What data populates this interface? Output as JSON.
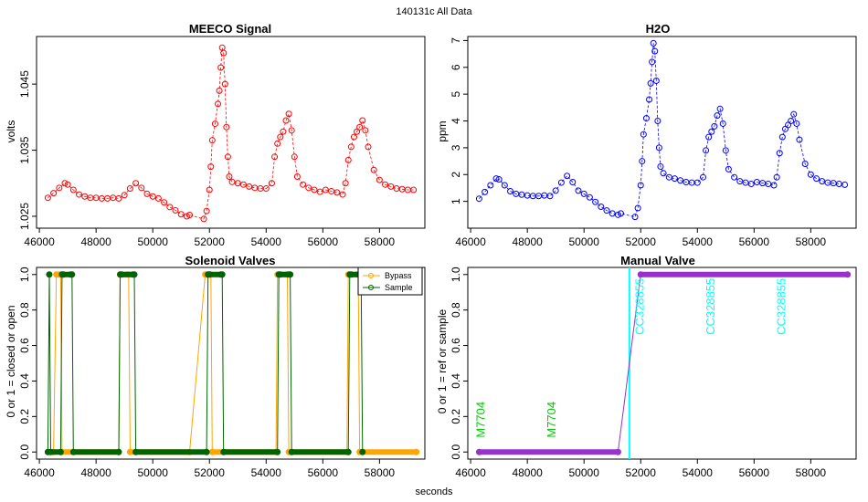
{
  "figure": {
    "title": "140131c   All Data",
    "footer_label": "seconds"
  },
  "chart_data": [
    {
      "id": "meeco",
      "type": "scatter",
      "title": "MEECO Signal",
      "xlabel": "",
      "ylabel": "volts",
      "xlim": [
        45900,
        59600
      ],
      "ylim": [
        1.0232,
        1.0522
      ],
      "xticks": [
        46000,
        48000,
        50000,
        52000,
        54000,
        56000,
        58000
      ],
      "yticks": [
        1.025,
        1.035,
        1.045
      ],
      "ytick_labels": [
        "1.025",
        "1.035",
        "1.045"
      ],
      "color": "#ff0000",
      "series": [
        {
          "x": [
            46300,
            46500,
            46700,
            46900,
            47000,
            47200,
            47400,
            47600,
            47800,
            48000,
            48200,
            48400,
            48600,
            48800,
            49000,
            49200,
            49400,
            49600,
            49800,
            50000,
            50200,
            50400,
            50600,
            50800,
            51000,
            51200,
            51300,
            51800,
            51900,
            52000,
            52050,
            52100,
            52200,
            52300,
            52350,
            52400,
            52450,
            52500,
            52550,
            52600,
            52650,
            52700,
            52800,
            53000,
            53200,
            53400,
            53600,
            53800,
            54000,
            54200,
            54300,
            54400,
            54500,
            54600,
            54700,
            54800,
            54900,
            55000,
            55100,
            55300,
            55500,
            55700,
            55900,
            56100,
            56300,
            56500,
            56700,
            56800,
            56900,
            57000,
            57100,
            57200,
            57300,
            57400,
            57500,
            57600,
            57800,
            58000,
            58200,
            58400,
            58600,
            58800,
            59000,
            59200
          ],
          "y": [
            1.0278,
            1.0285,
            1.0293,
            1.03,
            1.0298,
            1.029,
            1.0283,
            1.028,
            1.0278,
            1.0278,
            1.0277,
            1.0277,
            1.0278,
            1.0277,
            1.0282,
            1.0292,
            1.03,
            1.0293,
            1.0284,
            1.028,
            1.0277,
            1.0271,
            1.0264,
            1.0259,
            1.0253,
            1.025,
            1.0252,
            1.0246,
            1.0258,
            1.029,
            1.0325,
            1.0365,
            1.039,
            1.042,
            1.044,
            1.0475,
            1.0505,
            1.0497,
            1.045,
            1.0385,
            1.034,
            1.031,
            1.0302,
            1.03,
            1.0298,
            1.0295,
            1.0293,
            1.0292,
            1.0292,
            1.03,
            1.034,
            1.036,
            1.037,
            1.0378,
            1.0395,
            1.0405,
            1.038,
            1.034,
            1.031,
            1.0298,
            1.0293,
            1.029,
            1.0287,
            1.029,
            1.0288,
            1.0286,
            1.0283,
            1.03,
            1.0335,
            1.0355,
            1.037,
            1.0378,
            1.0385,
            1.0395,
            1.038,
            1.0355,
            1.032,
            1.0305,
            1.0298,
            1.0295,
            1.0292,
            1.0291,
            1.029,
            1.029
          ]
        }
      ]
    },
    {
      "id": "h2o",
      "type": "scatter",
      "title": "H2O",
      "xlabel": "",
      "ylabel": "ppm",
      "xlim": [
        45900,
        59600
      ],
      "ylim": [
        0.0,
        7.15
      ],
      "xticks": [
        46000,
        48000,
        50000,
        52000,
        54000,
        56000,
        58000
      ],
      "yticks": [
        1,
        2,
        3,
        4,
        5,
        6,
        7
      ],
      "ytick_labels": [
        "1",
        "2",
        "3",
        "4",
        "5",
        "6",
        "7"
      ],
      "color": "#0000ff",
      "series": [
        {
          "x": [
            46300,
            46500,
            46700,
            46900,
            47000,
            47200,
            47400,
            47600,
            47800,
            48000,
            48200,
            48400,
            48600,
            48800,
            49000,
            49200,
            49400,
            49600,
            49800,
            50000,
            50200,
            50400,
            50600,
            50800,
            51000,
            51200,
            51300,
            51800,
            51900,
            52000,
            52050,
            52100,
            52200,
            52300,
            52350,
            52400,
            52450,
            52500,
            52550,
            52600,
            52650,
            52700,
            52800,
            53000,
            53200,
            53400,
            53600,
            53800,
            54000,
            54200,
            54300,
            54400,
            54500,
            54600,
            54700,
            54800,
            54900,
            55000,
            55100,
            55300,
            55500,
            55700,
            55900,
            56100,
            56300,
            56500,
            56700,
            56800,
            56900,
            57000,
            57100,
            57200,
            57300,
            57400,
            57500,
            57600,
            57800,
            58000,
            58200,
            58400,
            58600,
            58800,
            59000,
            59200
          ],
          "y": [
            1.1,
            1.35,
            1.6,
            1.85,
            1.82,
            1.6,
            1.38,
            1.28,
            1.25,
            1.22,
            1.2,
            1.2,
            1.22,
            1.2,
            1.4,
            1.7,
            1.95,
            1.72,
            1.4,
            1.28,
            1.15,
            0.98,
            0.8,
            0.66,
            0.55,
            0.5,
            0.55,
            0.42,
            0.75,
            1.6,
            2.5,
            3.5,
            4.1,
            4.8,
            5.4,
            6.2,
            6.9,
            6.6,
            5.5,
            4.0,
            3.0,
            2.3,
            2.05,
            1.9,
            1.85,
            1.78,
            1.72,
            1.7,
            1.7,
            1.9,
            2.9,
            3.4,
            3.6,
            3.8,
            4.2,
            4.45,
            3.9,
            2.9,
            2.2,
            1.9,
            1.75,
            1.7,
            1.65,
            1.72,
            1.68,
            1.65,
            1.6,
            1.9,
            2.8,
            3.4,
            3.7,
            3.85,
            4.0,
            4.25,
            3.9,
            3.3,
            2.4,
            2.0,
            1.85,
            1.75,
            1.7,
            1.68,
            1.65,
            1.62
          ]
        }
      ]
    },
    {
      "id": "solenoid",
      "type": "line",
      "title": "Solenoid Valves",
      "xlabel": "",
      "ylabel": "0 or 1 = closed or open",
      "xlim": [
        45900,
        59600
      ],
      "ylim": [
        -0.04,
        1.04
      ],
      "xticks": [
        46000,
        48000,
        50000,
        52000,
        54000,
        56000,
        58000
      ],
      "yticks": [
        0.0,
        0.2,
        0.4,
        0.6,
        0.8,
        1.0
      ],
      "ytick_labels": [
        "0.0",
        "0.2",
        "0.4",
        "0.6",
        "0.8",
        "1.0"
      ],
      "legend": {
        "position": "top-right"
      },
      "series": [
        {
          "name": "Bypass",
          "color": "#ffa500",
          "x": [
            46300,
            46500,
            46600,
            46700,
            46750,
            46800,
            48800,
            48850,
            49100,
            49150,
            49200,
            51300,
            51850,
            51900,
            52000,
            52050,
            52100,
            54350,
            54400,
            54700,
            54750,
            54800,
            56850,
            56900,
            57200,
            57250,
            57300,
            59300
          ],
          "y": [
            0,
            0,
            1,
            1,
            1,
            0,
            0,
            1,
            1,
            1,
            0,
            0,
            1,
            1,
            1,
            1,
            0,
            0,
            1,
            1,
            1,
            0,
            0,
            1,
            1,
            1,
            0,
            0
          ]
        },
        {
          "name": "Sample",
          "color": "#006400",
          "x": [
            46300,
            46350,
            46400,
            46750,
            46800,
            46850,
            47100,
            47150,
            47200,
            48800,
            48850,
            48900,
            49300,
            49350,
            49400,
            51900,
            51950,
            52000,
            52400,
            52450,
            52500,
            54400,
            54450,
            54500,
            54800,
            54850,
            54900,
            56900,
            56950,
            57000,
            57300,
            57350,
            57400
          ],
          "y": [
            0,
            1,
            0,
            0,
            1,
            1,
            1,
            1,
            0,
            0,
            1,
            1,
            1,
            1,
            0,
            0,
            1,
            1,
            1,
            1,
            0,
            0,
            1,
            1,
            1,
            1,
            0,
            0,
            1,
            1,
            1,
            1,
            0
          ]
        }
      ]
    },
    {
      "id": "manual",
      "type": "line",
      "title": "Manual Valve",
      "xlabel": "",
      "ylabel": "0 or 1 = ref or sample",
      "xlim": [
        45900,
        59600
      ],
      "ylim": [
        -0.04,
        1.04
      ],
      "xticks": [
        46000,
        48000,
        50000,
        52000,
        54000,
        56000,
        58000
      ],
      "yticks": [
        0.0,
        0.2,
        0.4,
        0.6,
        0.8,
        1.0
      ],
      "ytick_labels": [
        "0.0",
        "0.2",
        "0.4",
        "0.6",
        "0.8",
        "1.0"
      ],
      "series": [
        {
          "color": "#9932cc",
          "x": [
            46300,
            51200,
            52000,
            59300
          ],
          "y": [
            0,
            0,
            1,
            1
          ]
        }
      ],
      "vline": {
        "x": 51600,
        "color": "#00ffff"
      },
      "annotations": [
        {
          "text": "M7704",
          "x": 46500,
          "y": 0.08,
          "color": "#00cc00"
        },
        {
          "text": "M7704",
          "x": 49000,
          "y": 0.08,
          "color": "#00cc00"
        },
        {
          "text": "CC328855",
          "x": 52100,
          "y": 0.66,
          "color": "#00ffff"
        },
        {
          "text": "CC328855",
          "x": 54600,
          "y": 0.66,
          "color": "#00ffff"
        },
        {
          "text": "CC328855",
          "x": 57100,
          "y": 0.66,
          "color": "#00ffff"
        }
      ]
    }
  ]
}
